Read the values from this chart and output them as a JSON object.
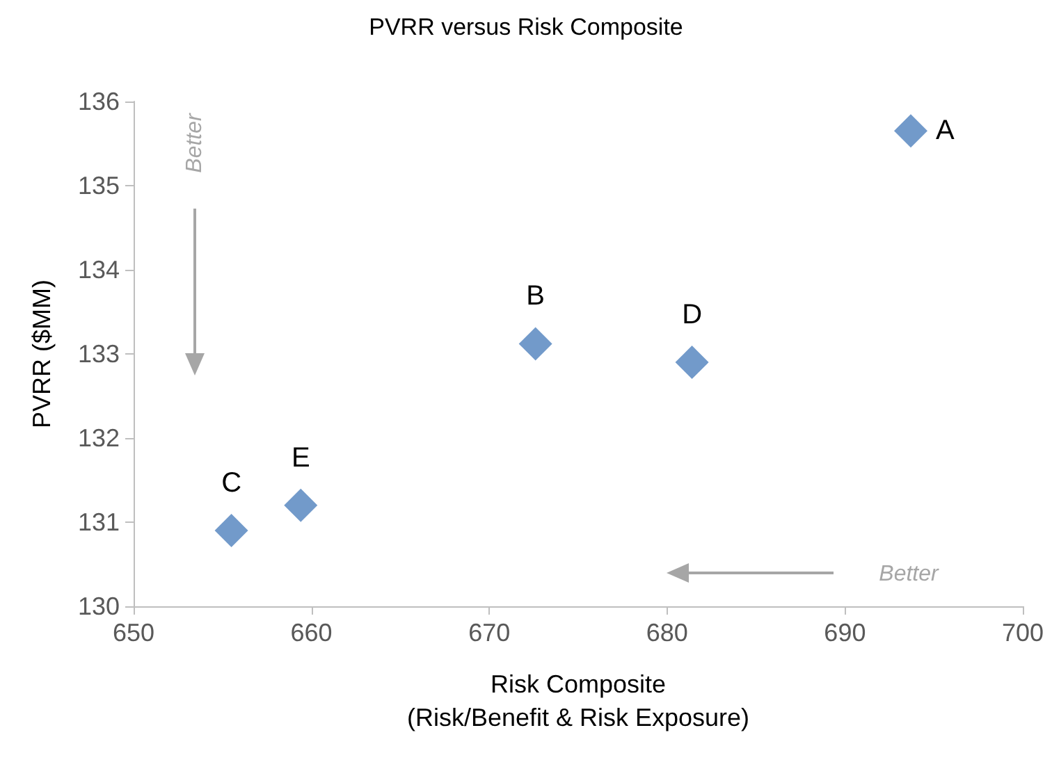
{
  "chart_data": {
    "type": "scatter",
    "title": "PVRR versus Risk Composite",
    "xlabel": "Risk Composite\n(Risk/Benefit & Risk Exposure)",
    "ylabel": "PVRR ($MM)",
    "x": [
      693.7,
      672.6,
      681.4,
      655.5,
      659.4
    ],
    "series": [
      {
        "color": "#4f81bd",
        "values": [
          135.65,
          133.12,
          132.9,
          130.9,
          131.2
        ]
      }
    ],
    "xlim": [
      650,
      700
    ],
    "xticks": [
      650,
      660,
      670,
      680,
      690,
      700
    ],
    "ylim": [
      130,
      136
    ],
    "yticks": [
      130,
      131,
      132,
      133,
      134,
      135,
      136
    ],
    "grid": false,
    "marker": "diamond",
    "annotations": [
      {
        "text": "A",
        "x": 693.7,
        "y": 135.65
      },
      {
        "text": "B",
        "x": 672.6,
        "y": 133.12
      },
      {
        "text": "D",
        "x": 681.4,
        "y": 132.9
      },
      {
        "text": "C",
        "x": 655.5,
        "y": 130.9
      },
      {
        "text": "E",
        "x": 659.4,
        "y": 131.2
      },
      "Better",
      "Better"
    ]
  }
}
